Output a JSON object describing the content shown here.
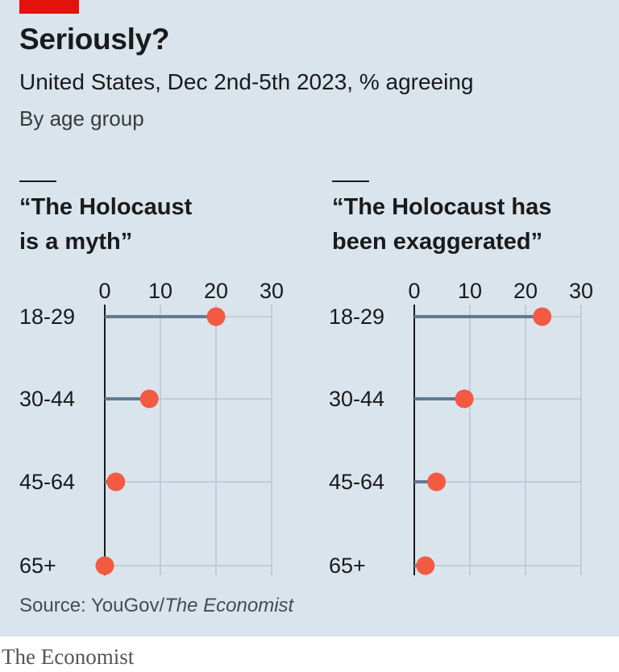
{
  "header": {
    "title": "Seriously?",
    "subtitle": "United States, Dec 2nd-5th 2023, % agreeing",
    "byline": "By age group"
  },
  "footer": {
    "source_prefix": "Source: YouGov/",
    "source_italic": "The Economist",
    "brand": "The Economist"
  },
  "colors": {
    "background": "#d9e4ec",
    "accent_red": "#e3120b",
    "dot": "#f25a41",
    "stem": "#5f7b8f",
    "grid": "#b7c7d3"
  },
  "chart_data": [
    {
      "type": "lollipop",
      "title_line1": "“The Holocaust",
      "title_line2": "is a myth”",
      "categories": [
        "18-29",
        "30-44",
        "45-64",
        "65+"
      ],
      "values": [
        20,
        8,
        2,
        0
      ],
      "x_ticks": [
        0,
        10,
        20,
        30
      ],
      "xlim": [
        0,
        30
      ]
    },
    {
      "type": "lollipop",
      "title_line1": "“The Holocaust has",
      "title_line2": "been exaggerated”",
      "categories": [
        "18-29",
        "30-44",
        "45-64",
        "65+"
      ],
      "values": [
        23,
        9,
        4,
        2
      ],
      "x_ticks": [
        0,
        10,
        20,
        30
      ],
      "xlim": [
        0,
        30
      ]
    }
  ]
}
